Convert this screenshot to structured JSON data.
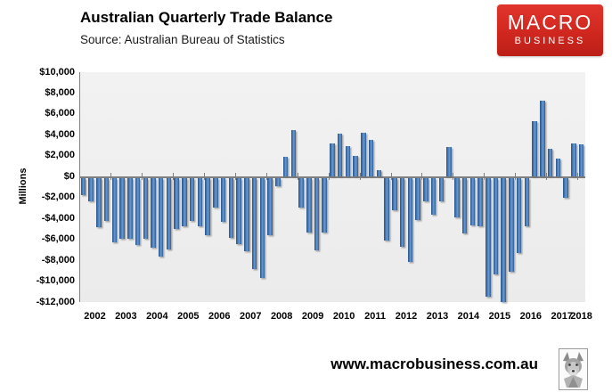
{
  "header": {
    "title": "Australian Quarterly Trade Balance",
    "source": "Source: Australian Bureau of Statistics"
  },
  "logo": {
    "line1": "MACRO",
    "line2": "BUSINESS",
    "bg_color": "#d0271f",
    "text_color": "#ffffff"
  },
  "footer": {
    "url": "www.macrobusiness.com.au",
    "wolf_icon": "wolf-logo-image"
  },
  "chart_data": {
    "type": "bar",
    "title": "Australian Quarterly Trade Balance",
    "subtitle": "Source: Australian Bureau of Statistics",
    "xlabel": "",
    "ylabel": "Millions",
    "ylim": [
      -12000,
      10000
    ],
    "ytick_step": 2000,
    "ytick_labels": [
      "$10,000",
      "$8,000",
      "$6,000",
      "$4,000",
      "$2,000",
      "$0",
      "-$2,000",
      "-$4,000",
      "-$6,000",
      "-$8,000",
      "-$10,000",
      "-$12,000"
    ],
    "years": [
      "2002",
      "2003",
      "2004",
      "2005",
      "2006",
      "2007",
      "2008",
      "2009",
      "2010",
      "2011",
      "2012",
      "2013",
      "2014",
      "2015",
      "2016",
      "2017",
      "2018"
    ],
    "grid": false,
    "legend": "none",
    "bar_color": "#4f81bd",
    "plot_bg_color": "#efefef",
    "axis_color": "#808080",
    "categories": [
      "2002Q1",
      "2002Q2",
      "2002Q3",
      "2002Q4",
      "2003Q1",
      "2003Q2",
      "2003Q3",
      "2003Q4",
      "2004Q1",
      "2004Q2",
      "2004Q3",
      "2004Q4",
      "2005Q1",
      "2005Q2",
      "2005Q3",
      "2005Q4",
      "2006Q1",
      "2006Q2",
      "2006Q3",
      "2006Q4",
      "2007Q1",
      "2007Q2",
      "2007Q3",
      "2007Q4",
      "2008Q1",
      "2008Q2",
      "2008Q3",
      "2008Q4",
      "2009Q1",
      "2009Q2",
      "2009Q3",
      "2009Q4",
      "2010Q1",
      "2010Q2",
      "2010Q3",
      "2010Q4",
      "2011Q1",
      "2011Q2",
      "2011Q3",
      "2011Q4",
      "2012Q1",
      "2012Q2",
      "2012Q3",
      "2012Q4",
      "2013Q1",
      "2013Q2",
      "2013Q3",
      "2013Q4",
      "2014Q1",
      "2014Q2",
      "2014Q3",
      "2014Q4",
      "2015Q1",
      "2015Q2",
      "2015Q3",
      "2015Q4",
      "2016Q1",
      "2016Q2",
      "2016Q3",
      "2016Q4",
      "2017Q1",
      "2017Q2",
      "2017Q3",
      "2017Q4",
      "2018Q1"
    ],
    "values": [
      -1600,
      -2200,
      -4700,
      -4100,
      -6200,
      -5800,
      -5800,
      -6400,
      -5800,
      -6700,
      -7500,
      -6800,
      -4900,
      -4600,
      -4100,
      -4600,
      -5500,
      -2800,
      -4200,
      -5700,
      -6300,
      -7000,
      -8700,
      -9600,
      -5500,
      -800,
      1900,
      4500,
      -2800,
      -5200,
      -6900,
      -5200,
      3200,
      4100,
      2900,
      2000,
      4200,
      3500,
      600,
      -6000,
      -3100,
      -6600,
      -8000,
      -4000,
      -2200,
      -3500,
      -2200,
      2800,
      -3800,
      -5300,
      -4500,
      -4600,
      -11400,
      -9200,
      -11900,
      -9000,
      -7200,
      -4600,
      5300,
      7300,
      2700,
      1700,
      -1900,
      3200,
      3100
    ]
  }
}
